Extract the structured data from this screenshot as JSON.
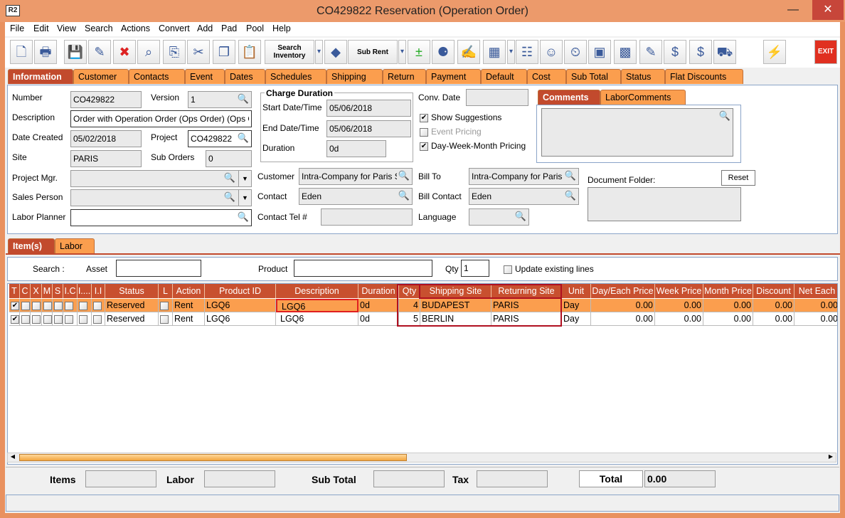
{
  "window": {
    "title": "CO429822 Reservation (Operation Order)",
    "app_icon": "R2",
    "minimize": "—",
    "close": "✕"
  },
  "menu": [
    "File",
    "Edit",
    "View",
    "Search",
    "Actions",
    "Convert",
    "Add",
    "Pad",
    "Pool",
    "Help"
  ],
  "toolbar": {
    "icons": [
      "new-document",
      "print",
      "save",
      "edit-pencil",
      "delete",
      "binoculars",
      "copy-transfer",
      "cut",
      "copy",
      "paste",
      "search-inventory",
      "dropdown",
      "shapes",
      "sub-rent",
      "dropdown",
      "add-remove",
      "balls",
      "notes",
      "calendar",
      "dropdown",
      "hierarchy",
      "smiley",
      "clock-notes",
      "printer-3d",
      "grid-chart",
      "form-edit",
      "money-arrow",
      "money-notes",
      "delivery-truck",
      "lightning",
      "exit"
    ],
    "search_inventory": "Search Inventory",
    "sub_rent": "Sub Rent",
    "exit": "EXIT"
  },
  "tabs": [
    "Information",
    "Customer",
    "Contacts",
    "Event",
    "Dates",
    "Schedules",
    "Shipping",
    "Return",
    "Payment",
    "Default",
    "Cost",
    "Sub Total",
    "Status",
    "Flat Discounts"
  ],
  "info": {
    "number_label": "Number",
    "number": "CO429822",
    "version_label": "Version",
    "version": "1",
    "description_label": "Description",
    "description": "Order with Operation Order (Ops Order) (Ops O",
    "date_created_label": "Date Created",
    "date_created": "05/02/2018",
    "project_label": "Project",
    "project": "CO429822",
    "site_label": "Site",
    "site": "PARIS",
    "sub_orders_label": "Sub Orders",
    "sub_orders": "0",
    "project_mgr_label": "Project Mgr.",
    "project_mgr": "",
    "sales_person_label": "Sales Person",
    "sales_person": "",
    "labor_planner_label": "Labor Planner",
    "labor_planner": "",
    "charge_duration_title": "Charge Duration",
    "start_label": "Start Date/Time",
    "start": "05/06/2018",
    "end_label": "End Date/Time",
    "end": "05/06/2018",
    "duration_label": "Duration",
    "duration": "0d",
    "conv_date_label": "Conv. Date",
    "conv_date": "",
    "show_suggestions": "Show Suggestions",
    "event_pricing": "Event Pricing",
    "dwm_pricing": "Day-Week-Month Pricing",
    "customer_label": "Customer",
    "customer": "Intra-Company for Paris Site",
    "bill_to_label": "Bill To",
    "bill_to": "Intra-Company for Paris Site",
    "contact_label": "Contact",
    "contact": "Eden",
    "bill_contact_label": "Bill Contact",
    "bill_contact": "Eden",
    "contact_tel_label": "Contact Tel #",
    "contact_tel": "",
    "language_label": "Language",
    "language": "",
    "comments_tabs": [
      "Comments",
      "LaborComments"
    ],
    "document_folder_label": "Document Folder:",
    "reset": "Reset"
  },
  "items_tabs": [
    "Item(s)",
    "Labor"
  ],
  "search": {
    "label": "Search :",
    "asset_label": "Asset",
    "asset": "",
    "product_label": "Product",
    "product": "",
    "qty_label": "Qty",
    "qty": "1",
    "update_label": "Update existing lines"
  },
  "grid": {
    "columns": [
      "T",
      "C",
      "X",
      "M",
      "S",
      "I.C",
      "I....",
      "I.I",
      "Status",
      "L",
      "Action",
      "Product ID",
      "Description",
      "Duration",
      "Qty",
      "Shipping Site",
      "Returning Site",
      "Unit",
      "Day/Each Price",
      "Week Price",
      "Month Price",
      "Discount",
      "Net Each"
    ],
    "rows": [
      {
        "status": "Reserved",
        "action": "Rent",
        "product_id": "LGQ6",
        "description": "LGQ6",
        "duration": "0d",
        "qty": "4",
        "shipping": "BUDAPEST",
        "returning": "PARIS",
        "unit": "Day",
        "day": "0.00",
        "week": "0.00",
        "month": "0.00",
        "discount": "0.00",
        "net": "0.00"
      },
      {
        "status": "Reserved",
        "action": "Rent",
        "product_id": "LGQ6",
        "description": "LGQ6",
        "duration": "0d",
        "qty": "5",
        "shipping": "BERLIN",
        "returning": "PARIS",
        "unit": "Day",
        "day": "0.00",
        "week": "0.00",
        "month": "0.00",
        "discount": "0.00",
        "net": "0.00"
      }
    ]
  },
  "totals": {
    "items_label": "Items",
    "items": "",
    "labor_label": "Labor",
    "labor": "",
    "subtotal_label": "Sub Total",
    "subtotal": "",
    "tax_label": "Tax",
    "tax": "",
    "total_label": "Total",
    "total": "0.00"
  },
  "colors": {
    "tab": "#fb9e4e",
    "tab_selected": "#c24a2d",
    "grid_header": "#c8502f",
    "selected_row": "#fb9e4e",
    "highlight": "#c0102a"
  }
}
